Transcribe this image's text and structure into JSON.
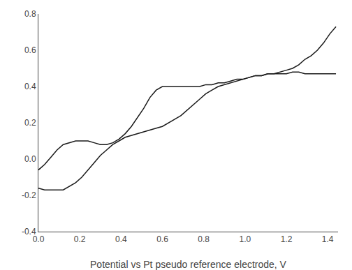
{
  "chart_data": {
    "type": "line",
    "xlabel": "Potential vs Pt pseudo reference electrode, V",
    "xlim": [
      0.0,
      1.45
    ],
    "ylim": [
      -0.4,
      0.8
    ],
    "xticks": [
      {
        "value": 0.0,
        "label": "0.0"
      },
      0.2,
      0.4,
      0.6,
      0.8,
      {
        "value": 1.0,
        "label": "1.0"
      },
      1.2,
      1.4
    ],
    "yticks": [
      -0.4,
      -0.2,
      {
        "value": 0.0,
        "label": "0.0"
      },
      0.2,
      0.4,
      0.6,
      0.8
    ],
    "grid": false,
    "color": "#1a1a1a",
    "series": [
      {
        "x": [
          0.0,
          0.03,
          0.06,
          0.09,
          0.12,
          0.15,
          0.18,
          0.21,
          0.24,
          0.27,
          0.3,
          0.33,
          0.36,
          0.39,
          0.42,
          0.45,
          0.48,
          0.51,
          0.54,
          0.57,
          0.6,
          0.63,
          0.66,
          0.69,
          0.72,
          0.75,
          0.78,
          0.81,
          0.84,
          0.87,
          0.9,
          0.93,
          0.96,
          0.99,
          1.02,
          1.05,
          1.08,
          1.11,
          1.14,
          1.17,
          1.2,
          1.23,
          1.26,
          1.29,
          1.32,
          1.35,
          1.38,
          1.41,
          1.44
        ],
        "values": [
          -0.06,
          -0.03,
          0.01,
          0.05,
          0.08,
          0.09,
          0.1,
          0.1,
          0.1,
          0.09,
          0.08,
          0.08,
          0.09,
          0.11,
          0.14,
          0.18,
          0.23,
          0.28,
          0.34,
          0.38,
          0.4,
          0.4,
          0.4,
          0.4,
          0.4,
          0.4,
          0.4,
          0.41,
          0.41,
          0.42,
          0.42,
          0.43,
          0.44,
          0.44,
          0.45,
          0.46,
          0.46,
          0.47,
          0.47,
          0.47,
          0.47,
          0.48,
          0.48,
          0.47,
          0.47,
          0.47,
          0.47,
          0.47,
          0.47
        ]
      },
      {
        "x": [
          1.44,
          1.41,
          1.38,
          1.35,
          1.32,
          1.29,
          1.26,
          1.23,
          1.2,
          1.17,
          1.14,
          1.11,
          1.08,
          1.05,
          1.02,
          0.99,
          0.96,
          0.93,
          0.9,
          0.87,
          0.84,
          0.81,
          0.78,
          0.75,
          0.72,
          0.69,
          0.66,
          0.63,
          0.6,
          0.57,
          0.54,
          0.51,
          0.48,
          0.45,
          0.42,
          0.39,
          0.36,
          0.33,
          0.3,
          0.27,
          0.24,
          0.21,
          0.18,
          0.15,
          0.12,
          0.09,
          0.06,
          0.03,
          0.0
        ],
        "values": [
          0.73,
          0.69,
          0.64,
          0.6,
          0.57,
          0.55,
          0.52,
          0.5,
          0.49,
          0.48,
          0.47,
          0.47,
          0.46,
          0.46,
          0.45,
          0.44,
          0.43,
          0.42,
          0.41,
          0.4,
          0.38,
          0.36,
          0.33,
          0.3,
          0.27,
          0.24,
          0.22,
          0.2,
          0.18,
          0.17,
          0.16,
          0.15,
          0.14,
          0.13,
          0.12,
          0.1,
          0.08,
          0.05,
          0.02,
          -0.02,
          -0.06,
          -0.1,
          -0.13,
          -0.15,
          -0.17,
          -0.17,
          -0.17,
          -0.17,
          -0.16
        ]
      }
    ]
  }
}
